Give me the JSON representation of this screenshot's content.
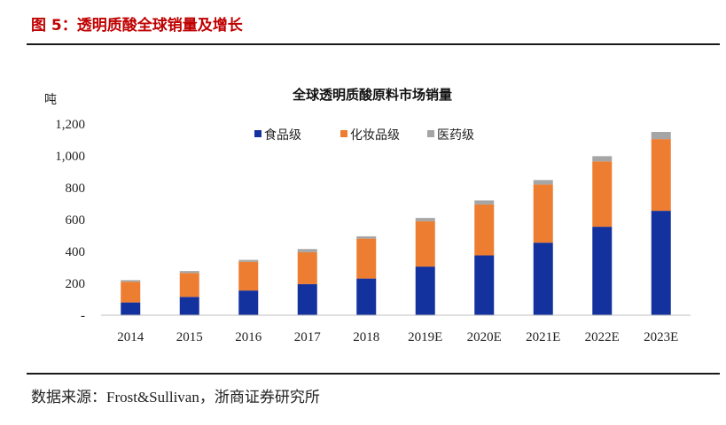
{
  "figure": {
    "title": "图 5：透明质酸全球销量及增长",
    "source": "数据来源：Frost&Sullivan，浙商证券研究所"
  },
  "colors": {
    "title_red": "#C00000",
    "rule": "#1a1a1a",
    "axis": "#BFBFBF",
    "series": [
      "#14329E",
      "#ED7D31",
      "#A5A5A5"
    ]
  },
  "chart_data": {
    "type": "bar",
    "stacked": true,
    "title": "全球透明质酸原料市场销量",
    "xlabel": "",
    "ylabel": "吨",
    "categories": [
      "2014",
      "2015",
      "2016",
      "2017",
      "2018",
      "2019E",
      "2020E",
      "2021E",
      "2022E",
      "2023E"
    ],
    "series": [
      {
        "name": "食品级",
        "values": [
          80,
          115,
          155,
          195,
          230,
          305,
          375,
          455,
          555,
          655
        ]
      },
      {
        "name": "化妆品级",
        "values": [
          130,
          150,
          180,
          200,
          250,
          285,
          320,
          365,
          410,
          450
        ]
      },
      {
        "name": "医药级",
        "values": [
          10,
          12,
          12,
          20,
          15,
          20,
          25,
          28,
          33,
          45
        ]
      }
    ],
    "ylim": [
      0,
      1200
    ],
    "yticks": [
      0,
      200,
      400,
      600,
      800,
      1000,
      1200
    ],
    "ytick_labels": [
      "-",
      "200",
      "400",
      "600",
      "800",
      "1,000",
      "1,200"
    ],
    "grid": false,
    "legend": "top"
  }
}
